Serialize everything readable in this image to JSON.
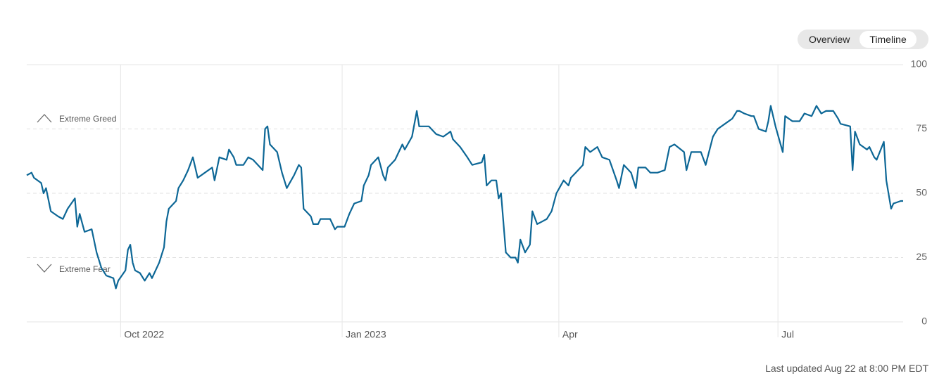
{
  "tabs": [
    "Overview",
    "Timeline"
  ],
  "last_updated": "Last updated Aug 22 at 8:00 PM EDT",
  "chart_data": {
    "type": "line",
    "annotations": [
      "Extreme Greed",
      "Extreme Fear"
    ],
    "color": "#0d6796",
    "xlim": [
      -39,
      325
    ],
    "xticks": [
      {
        "value": 0,
        "label": "Oct 2022"
      },
      {
        "value": 92,
        "label": "Jan 2023"
      },
      {
        "value": 182,
        "label": "Apr"
      },
      {
        "value": 273,
        "label": "Jul"
      }
    ],
    "ylim": [
      0,
      100
    ],
    "yticks": [
      0,
      25,
      50,
      75,
      100
    ],
    "grid": true,
    "x": [
      -39,
      -37,
      -36,
      -33,
      -32,
      -31,
      -29,
      -26,
      -24,
      -22,
      -19,
      -18,
      -17,
      -15,
      -12,
      -10,
      -8,
      -6,
      -3,
      -2,
      -1,
      2,
      3,
      4,
      5,
      6,
      8,
      10,
      12,
      13,
      16,
      18,
      19,
      20,
      23,
      24,
      26,
      28,
      30,
      32,
      35,
      38,
      39,
      41,
      44,
      45,
      47,
      48,
      51,
      53,
      55,
      59,
      60,
      61,
      62,
      65,
      67,
      69,
      72,
      74,
      75,
      76,
      79,
      80,
      82,
      83,
      85,
      87,
      89,
      90,
      93,
      95,
      97,
      100,
      101,
      103,
      104,
      107,
      109,
      110,
      111,
      114,
      115,
      117,
      118,
      121,
      123,
      124,
      125,
      128,
      131,
      134,
      137,
      138,
      141,
      144,
      146,
      150,
      151,
      152,
      154,
      156,
      157,
      158,
      160,
      162,
      164,
      165,
      166,
      168,
      170,
      171,
      173,
      175,
      177,
      179,
      181,
      184,
      186,
      187,
      190,
      192,
      193,
      195,
      198,
      200,
      203,
      206,
      207,
      209,
      212,
      214,
      215,
      218,
      220,
      223,
      226,
      228,
      230,
      234,
      235,
      237,
      241,
      243,
      246,
      248,
      251,
      254,
      256,
      257,
      259,
      262,
      263,
      265,
      268,
      269,
      270,
      272,
      275,
      276,
      279,
      282,
      284,
      287,
      289,
      291,
      293,
      296,
      298,
      299,
      303,
      304,
      305,
      307,
      310,
      311,
      313,
      314,
      317,
      318,
      320,
      321,
      324,
      325
    ],
    "values": [
      57,
      58,
      56,
      54,
      50,
      52,
      43,
      41,
      40,
      44,
      48,
      37,
      42,
      35,
      36,
      27,
      21,
      18,
      17,
      13,
      16,
      20,
      28,
      30,
      23,
      20,
      19,
      16,
      19,
      17,
      23,
      29,
      39,
      44,
      47,
      52,
      55,
      59,
      64,
      56,
      58,
      60,
      55,
      64,
      63,
      67,
      64,
      61,
      61,
      64,
      63,
      59,
      75,
      76,
      69,
      66,
      58,
      52,
      57,
      61,
      60,
      44,
      41,
      38,
      38,
      40,
      40,
      40,
      36,
      37,
      37,
      42,
      46,
      47,
      53,
      57,
      61,
      64,
      57,
      55,
      60,
      63,
      65,
      69,
      67,
      72,
      82,
      76,
      76,
      76,
      73,
      72,
      74,
      71,
      68,
      64,
      61,
      62,
      65,
      53,
      55,
      55,
      48,
      50,
      27,
      25,
      25,
      23,
      32,
      27,
      30,
      43,
      38,
      39,
      40,
      43,
      50,
      55,
      53,
      56,
      59,
      61,
      68,
      66,
      68,
      64,
      63,
      55,
      52,
      61,
      58,
      52,
      60,
      60,
      58,
      58,
      59,
      68,
      69,
      66,
      59,
      66,
      66,
      61,
      72,
      75,
      77,
      79,
      82,
      82,
      81,
      80,
      80,
      75,
      74,
      78,
      84,
      76,
      66,
      80,
      78,
      78,
      81,
      80,
      84,
      81,
      82,
      82,
      79,
      77,
      76,
      59,
      74,
      69,
      67,
      68,
      64,
      63,
      70,
      55,
      44,
      46,
      47,
      47
    ]
  }
}
